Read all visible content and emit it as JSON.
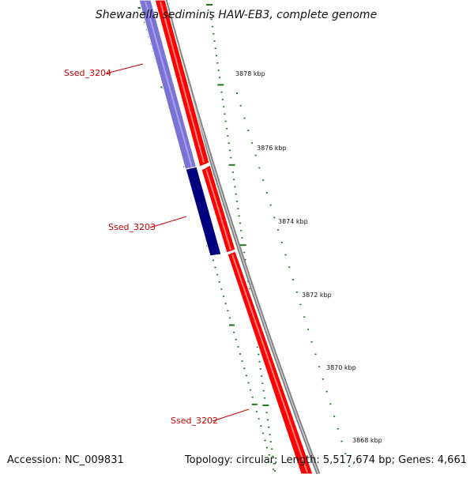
{
  "title": "Shewanella sediminis HAW-EB3, complete genome",
  "accession": "Accession: NC_009831",
  "summary": "Topology: circular; Length: 5,517,674 bp; Genes: 4,661",
  "colors": {
    "gene_label": "#cc0000",
    "forward_cds": "#ff0000",
    "reverse_cds_light": "#7b72d6",
    "reverse_cds_dark": "#000080",
    "backbone": "#808080",
    "ticks": "#1a7a1a"
  },
  "genes": [
    {
      "label": "Ssed_3204",
      "strand": "reverse",
      "shade": "light"
    },
    {
      "label": "Ssed_3203",
      "strand": "reverse",
      "shade": "dark"
    },
    {
      "label": "Ssed_3202",
      "strand": "forward"
    }
  ],
  "ruler": {
    "unit": "kbp",
    "tick_labels": [
      "3878 kbp",
      "3876 kbp",
      "3874 kbp",
      "3872 kbp",
      "3870 kbp",
      "3868 kbp"
    ]
  }
}
